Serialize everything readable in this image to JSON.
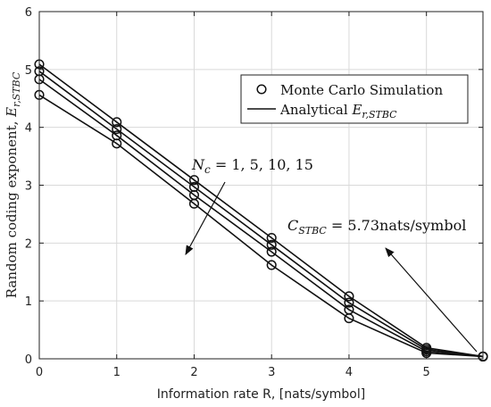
{
  "chart_data": {
    "type": "line",
    "xlabel": "Information rate R, [nats/symbol]",
    "ylabel": {
      "text": "Random coding exponent, ",
      "math_main": "E",
      "math_sub": "r,STBC"
    },
    "xlim": [
      0,
      5.73
    ],
    "ylim": [
      0,
      6
    ],
    "xticks": [
      0,
      1,
      2,
      3,
      4,
      5
    ],
    "yticks": [
      0,
      1,
      2,
      3,
      4,
      5,
      6
    ],
    "grid": true,
    "legend": {
      "placement": "top-right",
      "entries": [
        {
          "label": "Monte Carlo Simulation",
          "style": "marker",
          "marker": "circle"
        },
        {
          "label_text": "Analytical ",
          "label_math_main": "E",
          "label_math_sub": "r,STBC",
          "style": "line"
        }
      ]
    },
    "annotations": [
      {
        "id": "nc",
        "math_main": "N",
        "math_sub": "c",
        "text": " = 1, 5, 10, 15"
      },
      {
        "id": "capacity",
        "math_main": "C",
        "math_sub": "STBC",
        "text": " = 5.73nats/symbol"
      }
    ],
    "series": [
      {
        "name": "N_c = 1",
        "x": [
          0,
          1,
          2,
          3,
          4,
          5,
          5.73
        ],
        "y": [
          4.56,
          3.72,
          2.68,
          1.62,
          0.7,
          0.1,
          0.04
        ]
      },
      {
        "name": "N_c = 5",
        "x": [
          0,
          1,
          2,
          3,
          4,
          5,
          5.73
        ],
        "y": [
          4.83,
          3.86,
          2.83,
          1.85,
          0.85,
          0.13,
          0.04
        ]
      },
      {
        "name": "N_c = 10",
        "x": [
          0,
          1,
          2,
          3,
          4,
          5,
          5.73
        ],
        "y": [
          4.97,
          3.97,
          2.97,
          1.97,
          0.97,
          0.16,
          0.04
        ]
      },
      {
        "name": "N_c = 15",
        "x": [
          0,
          1,
          2,
          3,
          4,
          5,
          5.73
        ],
        "y": [
          5.09,
          4.09,
          3.09,
          2.09,
          1.08,
          0.19,
          0.04
        ]
      }
    ]
  }
}
